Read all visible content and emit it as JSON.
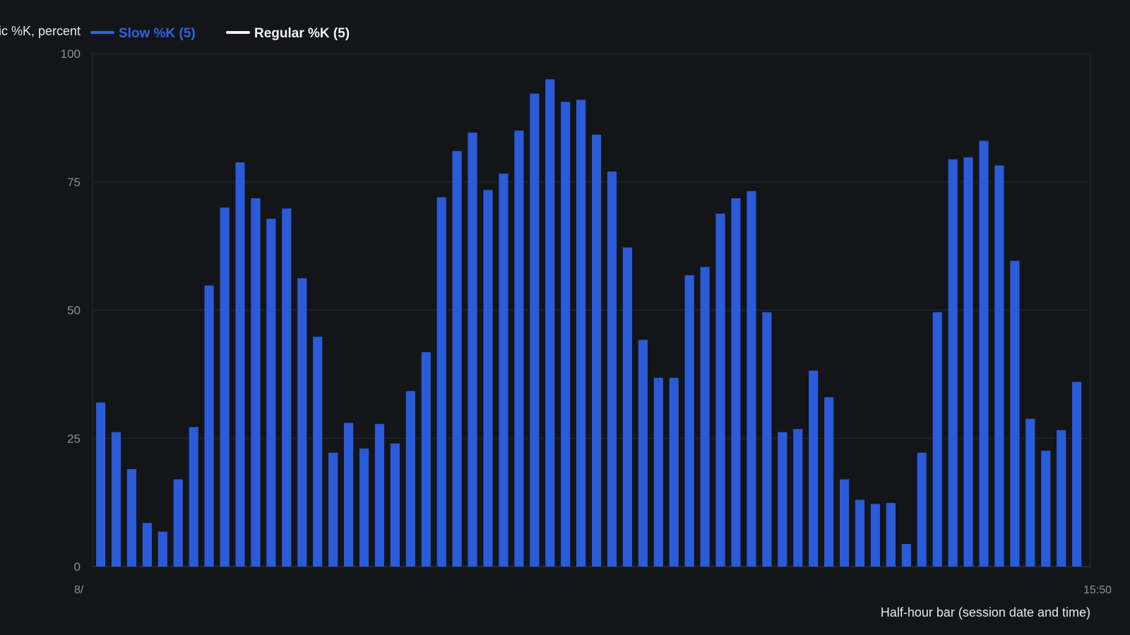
{
  "chart_data": {
    "type": "bar",
    "ylabel": "Stochastic %K, percent",
    "xlabel": "Half-hour bar (session date and time)",
    "ylim": [
      0,
      100
    ],
    "yticks": [
      0,
      25,
      50,
      75,
      100
    ],
    "grid": true,
    "legend_position": "top-left",
    "legend": [
      {
        "name": "Slow %K (5)",
        "color": "#2f63e0"
      },
      {
        "name": "Regular %K (5)",
        "color": "#f2f2f2"
      }
    ],
    "x_first_label": "8/",
    "x_last_label": "15:50",
    "series": [
      {
        "name": "Slow %K (5)",
        "color": "#2a5bd8",
        "values": [
          32,
          26.2,
          19,
          8.5,
          6.8,
          17,
          27.2,
          54.8,
          70,
          78.8,
          71.8,
          67.8,
          69.8,
          56.2,
          44.8,
          22.2,
          28,
          23,
          27.8,
          24,
          34.2,
          41.8,
          72,
          81,
          84.6,
          73.4,
          76.6,
          85,
          92.2,
          95,
          90.6,
          91,
          84.2,
          77,
          62.2,
          44.2,
          36.8,
          36.8,
          56.8,
          58.4,
          68.8,
          71.8,
          73.2,
          49.6,
          26.2,
          26.8,
          38.2,
          33,
          17,
          13,
          12.2,
          12.4,
          4.4,
          22.2,
          49.6,
          79.4,
          79.8,
          83,
          78.2,
          59.6,
          28.8,
          22.6,
          26.6,
          36
        ]
      }
    ]
  }
}
